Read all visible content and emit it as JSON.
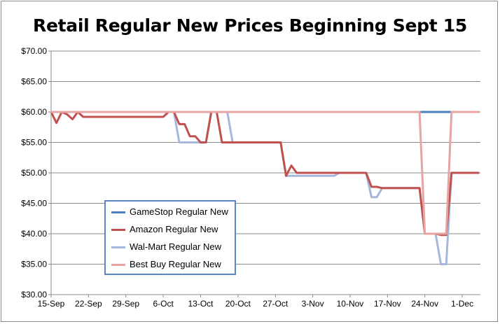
{
  "chart_data": {
    "type": "line",
    "title": "Retail Regular New Prices Beginning Sept 15",
    "xlabel": "",
    "ylabel": "",
    "ylim": [
      30,
      70
    ],
    "yticks": [
      "$30.00",
      "$35.00",
      "$40.00",
      "$45.00",
      "$50.00",
      "$55.00",
      "$60.00",
      "$65.00",
      "$70.00"
    ],
    "x_tick_labels": [
      "15-Sep",
      "22-Sep",
      "29-Sep",
      "6-Oct",
      "13-Oct",
      "20-Oct",
      "27-Oct",
      "3-Nov",
      "10-Nov",
      "17-Nov",
      "24-Nov",
      "1-Dec"
    ],
    "grid": true,
    "legend_position": "lower-left",
    "series": [
      {
        "name": "GameStop Regular New",
        "color": "#4a7ebf",
        "values": [
          60,
          60,
          60,
          60,
          60,
          60,
          60,
          60,
          60,
          60,
          60,
          60,
          60,
          60,
          60,
          60,
          60,
          60,
          60,
          60,
          60,
          60,
          60,
          60,
          60,
          60,
          60,
          60,
          60,
          60,
          60,
          60,
          60,
          60,
          60,
          60,
          60,
          60,
          60,
          60,
          60,
          60,
          60,
          60,
          60,
          60,
          60,
          60,
          60,
          60,
          60,
          60,
          60,
          60,
          60,
          60,
          60,
          60,
          60,
          60,
          60,
          60,
          60,
          60,
          60,
          60,
          60,
          60,
          60,
          60,
          60,
          60,
          60,
          60,
          60,
          60,
          60,
          60,
          60,
          60,
          60
        ]
      },
      {
        "name": "Amazon Regular New",
        "color": "#c0504d",
        "values": [
          60,
          58.2,
          60,
          59.6,
          58.8,
          60,
          59.2,
          59.2,
          59.2,
          59.2,
          59.2,
          59.2,
          59.2,
          59.2,
          59.2,
          59.2,
          59.2,
          59.2,
          59.2,
          59.2,
          59.2,
          59.2,
          60,
          60,
          58,
          58,
          56,
          56,
          55,
          55,
          60,
          60,
          55,
          55,
          55,
          55,
          55,
          55,
          55,
          55,
          55,
          55,
          55,
          55,
          49.5,
          51.2,
          50,
          50,
          50,
          50,
          50,
          50,
          50,
          50,
          50,
          50,
          50,
          50,
          50,
          50,
          47.7,
          47.7,
          47.5,
          47.5,
          47.5,
          47.5,
          47.5,
          47.5,
          47.5,
          47.5,
          40,
          40,
          40,
          39.8,
          39.8,
          50,
          50,
          50,
          50,
          50,
          50
        ]
      },
      {
        "name": "Wal-Mart Regular New",
        "color": "#a5b8db",
        "values": [
          60,
          60,
          60,
          60,
          60,
          60,
          60,
          60,
          60,
          60,
          60,
          60,
          60,
          60,
          60,
          60,
          60,
          60,
          60,
          60,
          60,
          60,
          60,
          60,
          55,
          55,
          55,
          55,
          55,
          55,
          60,
          60,
          60,
          60,
          55,
          55,
          55,
          55,
          55,
          55,
          55,
          55,
          55,
          55,
          49.5,
          49.5,
          49.5,
          49.5,
          49.5,
          49.5,
          49.5,
          49.5,
          49.5,
          49.5,
          50,
          50,
          50,
          50,
          50,
          50,
          46,
          46,
          47.5,
          47.5,
          47.5,
          47.5,
          47.5,
          47.5,
          47.5,
          47.5,
          40,
          40,
          40,
          35,
          35,
          50,
          50,
          50,
          50,
          50,
          50
        ]
      },
      {
        "name": "Best Buy Regular New",
        "color": "#e6a5a4",
        "values": [
          60,
          60,
          60,
          60,
          60,
          60,
          60,
          60,
          60,
          60,
          60,
          60,
          60,
          60,
          60,
          60,
          60,
          60,
          60,
          60,
          60,
          60,
          60,
          60,
          60,
          60,
          60,
          60,
          60,
          60,
          60,
          60,
          60,
          60,
          60,
          60,
          60,
          60,
          60,
          60,
          60,
          60,
          60,
          60,
          60,
          60,
          60,
          60,
          60,
          60,
          60,
          60,
          60,
          60,
          60,
          60,
          60,
          60,
          60,
          60,
          60,
          60,
          60,
          60,
          60,
          60,
          60,
          60,
          60,
          60,
          40,
          40,
          40,
          40,
          40,
          60,
          60,
          60,
          60,
          60,
          60
        ]
      }
    ]
  }
}
